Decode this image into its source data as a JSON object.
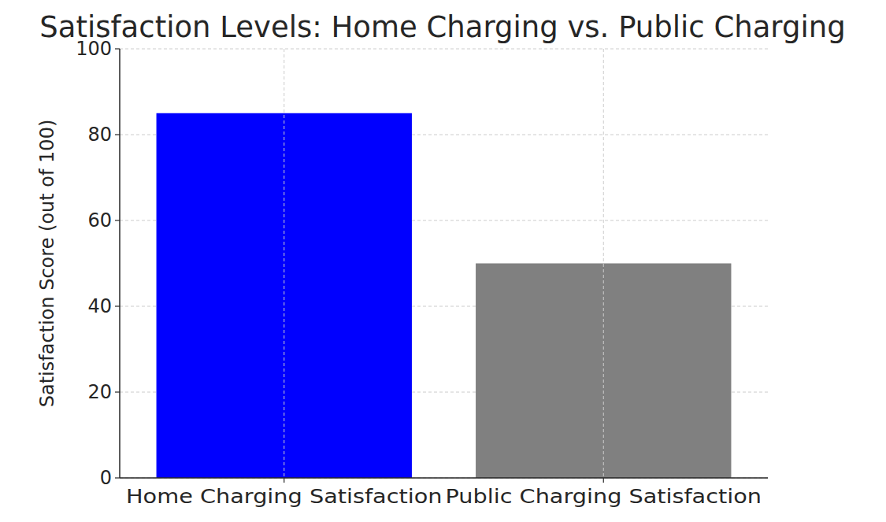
{
  "chart_data": {
    "type": "bar",
    "title": "Satisfaction Levels: Home Charging vs. Public Charging",
    "y_label": "Satisfaction Score (out of 100)",
    "categories": [
      "Home Charging Satisfaction",
      "Public Charging Satisfaction"
    ],
    "values": [
      85,
      50
    ],
    "colors": [
      "#0000ff",
      "#808080"
    ],
    "ylim": [
      0,
      100
    ],
    "yticks": [
      0,
      20,
      40,
      60,
      80,
      100
    ],
    "grid": true
  }
}
